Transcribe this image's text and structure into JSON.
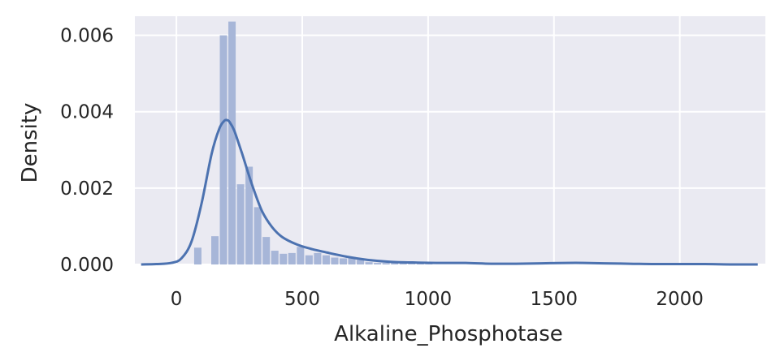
{
  "chart_data": {
    "type": "bar",
    "subtype": "histogram-with-kde",
    "title": "",
    "xlabel": "Alkaline_Phosphotase",
    "ylabel": "Density",
    "xlim": [
      -165,
      2340
    ],
    "ylim": [
      0,
      0.0065
    ],
    "x_ticks": [
      0,
      500,
      1000,
      1500,
      2000
    ],
    "y_ticks": [
      0.0,
      0.002,
      0.004,
      0.006
    ],
    "x_tick_labels": [
      "0",
      "500",
      "1000",
      "1500",
      "2000"
    ],
    "y_tick_labels": [
      "0.000",
      "0.002",
      "0.004",
      "0.006"
    ],
    "grid": true,
    "background": "#eaeaf2",
    "grid_color": "#ffffff",
    "bar_color": "#a7b6d8",
    "line_color": "#4c72b0",
    "bin_width": 34,
    "bins": [
      {
        "x0": 68,
        "density": 0.00044
      },
      {
        "x0": 102,
        "density": 0.0
      },
      {
        "x0": 136,
        "density": 0.00074
      },
      {
        "x0": 170,
        "density": 0.006
      },
      {
        "x0": 204,
        "density": 0.00636
      },
      {
        "x0": 238,
        "density": 0.0021
      },
      {
        "x0": 272,
        "density": 0.00256
      },
      {
        "x0": 306,
        "density": 0.0015
      },
      {
        "x0": 340,
        "density": 0.00072
      },
      {
        "x0": 374,
        "density": 0.00036
      },
      {
        "x0": 408,
        "density": 0.00028
      },
      {
        "x0": 442,
        "density": 0.0003
      },
      {
        "x0": 476,
        "density": 0.00046
      },
      {
        "x0": 510,
        "density": 0.00024
      },
      {
        "x0": 544,
        "density": 0.0003
      },
      {
        "x0": 578,
        "density": 0.00024
      },
      {
        "x0": 612,
        "density": 0.00018
      },
      {
        "x0": 646,
        "density": 0.00016
      },
      {
        "x0": 680,
        "density": 0.0002
      },
      {
        "x0": 714,
        "density": 0.00012
      },
      {
        "x0": 748,
        "density": 6e-05
      },
      {
        "x0": 782,
        "density": 4e-05
      },
      {
        "x0": 816,
        "density": 4e-05
      },
      {
        "x0": 850,
        "density": 4e-05
      },
      {
        "x0": 884,
        "density": 3e-05
      },
      {
        "x0": 918,
        "density": 2e-05
      },
      {
        "x0": 952,
        "density": 2e-05
      },
      {
        "x0": 986,
        "density": 1e-05
      }
    ],
    "kde": {
      "x": [
        -140,
        -80,
        -20,
        20,
        60,
        100,
        140,
        170,
        190,
        200,
        210,
        230,
        260,
        300,
        340,
        380,
        420,
        480,
        540,
        600,
        680,
        760,
        850,
        950,
        1050,
        1150,
        1250,
        1350,
        1450,
        1550,
        1620,
        1700,
        1800,
        1900,
        2000,
        2100,
        2200,
        2310
      ],
      "y": [
        0.0,
        1e-05,
        4e-05,
        0.00016,
        0.0006,
        0.0016,
        0.0029,
        0.00355,
        0.00376,
        0.00378,
        0.00374,
        0.0035,
        0.00292,
        0.0021,
        0.0014,
        0.00098,
        0.00072,
        0.00052,
        0.0004,
        0.00031,
        0.0002,
        0.00012,
        7e-05,
        5e-05,
        4e-05,
        4e-05,
        2e-05,
        2e-05,
        3e-05,
        4e-05,
        4e-05,
        3e-05,
        2e-05,
        1e-05,
        1e-05,
        1e-05,
        0.0,
        0.0
      ]
    }
  }
}
